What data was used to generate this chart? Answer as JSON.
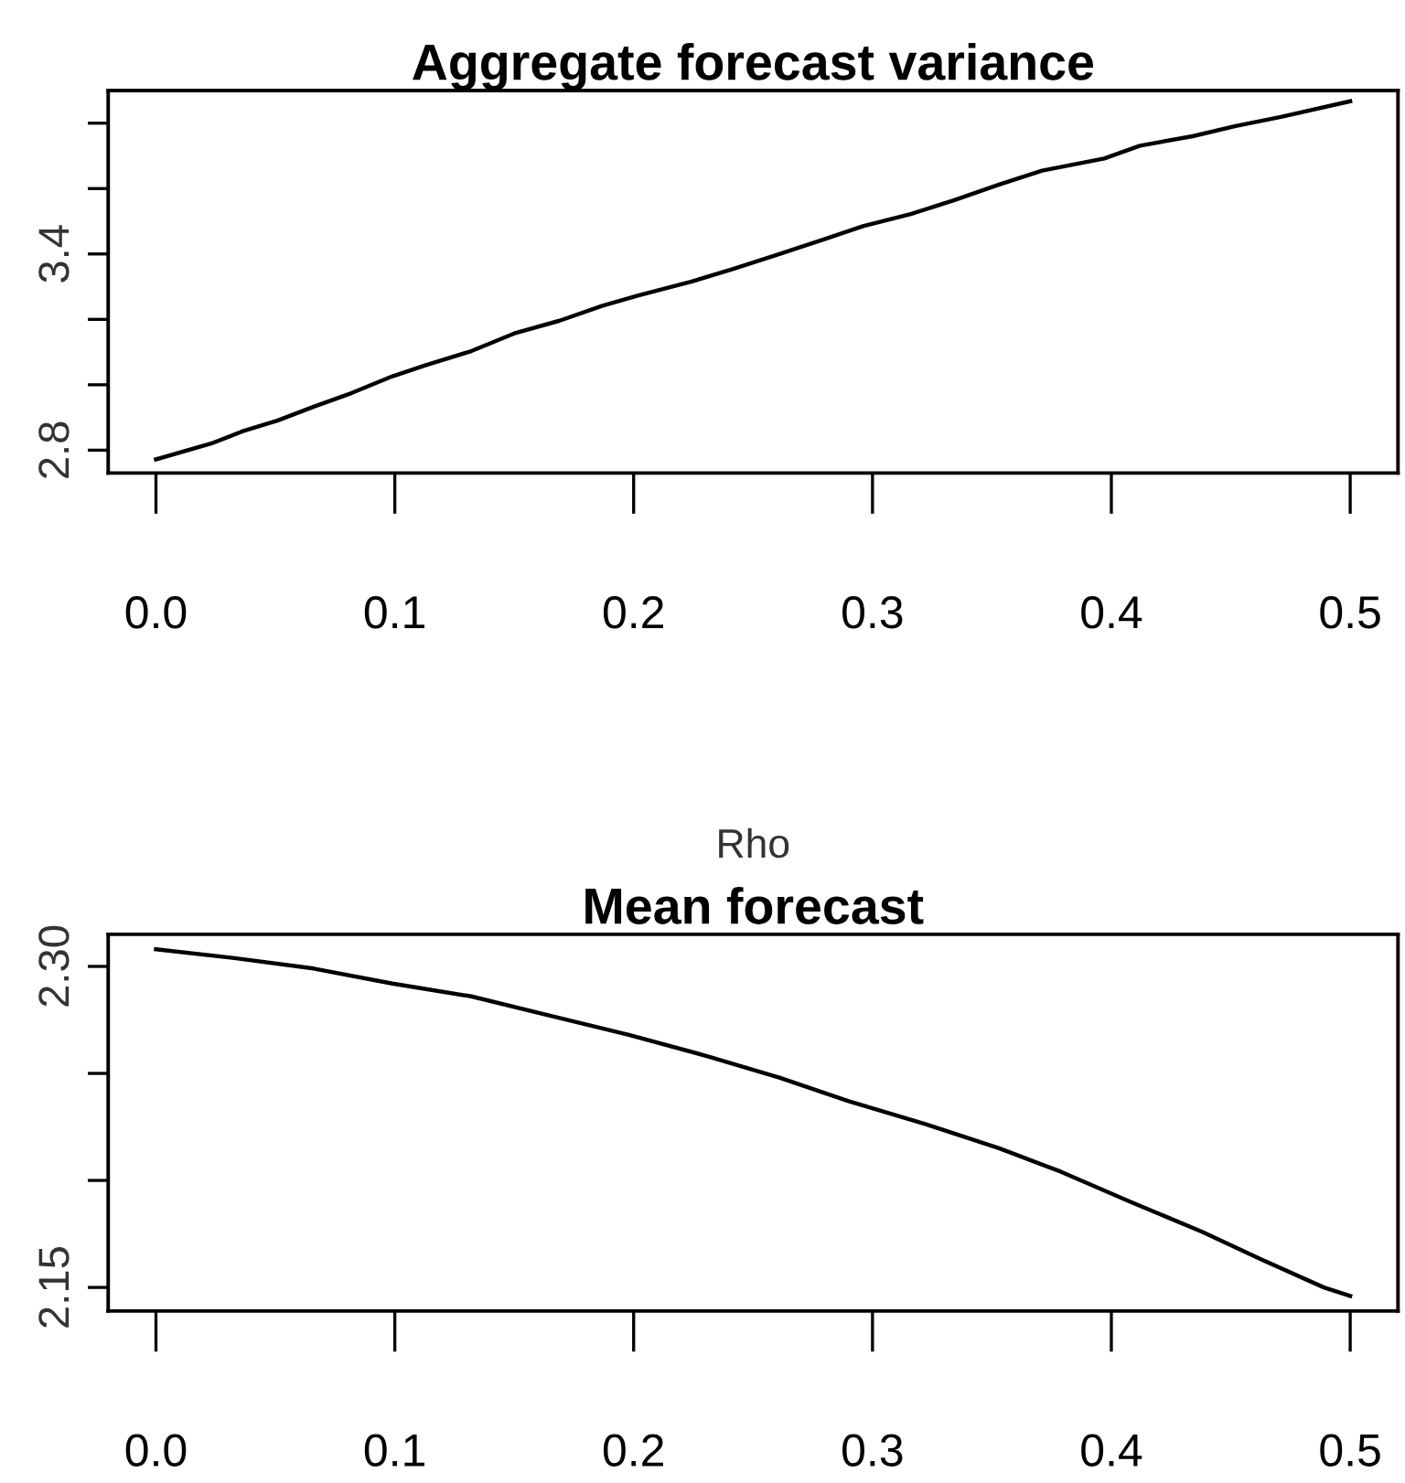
{
  "chart_data": [
    {
      "type": "line",
      "title": "Aggregate forecast variance",
      "xlabel": "Rho",
      "x": [
        0,
        0.023,
        0.036,
        0.051,
        0.066,
        0.082,
        0.099,
        0.113,
        0.132,
        0.15,
        0.169,
        0.187,
        0.202,
        0.224,
        0.242,
        0.261,
        0.279,
        0.296,
        0.316,
        0.334,
        0.353,
        0.371,
        0.397,
        0.412,
        0.434,
        0.452,
        0.471,
        0.5
      ],
      "series": [
        {
          "color": "#000000",
          "values": [
            2.772,
            2.82,
            2.857,
            2.891,
            2.933,
            2.975,
            3.026,
            3.06,
            3.103,
            3.157,
            3.196,
            3.242,
            3.273,
            3.315,
            3.355,
            3.4,
            3.443,
            3.485,
            3.522,
            3.564,
            3.612,
            3.655,
            3.692,
            3.731,
            3.76,
            3.791,
            3.819,
            3.867
          ]
        }
      ],
      "xlim": [
        -0.02,
        0.52
      ],
      "ylim": [
        2.73,
        3.9
      ],
      "xticks": [
        {
          "value": 0,
          "label": "0.0"
        },
        0.1,
        0.2,
        0.3,
        0.4,
        0.5
      ],
      "yticks": [
        2.8,
        {
          "value": 3.0,
          "label": null
        },
        {
          "value": 3.2,
          "label": null
        },
        3.4,
        {
          "value": 3.6,
          "label": null
        },
        {
          "value": 3.8,
          "label": null
        }
      ],
      "grid": false,
      "legend": false,
      "line_style": "solid"
    },
    {
      "type": "line",
      "title": "Mean forecast",
      "x": [
        0,
        0.032,
        0.066,
        0.099,
        0.132,
        0.165,
        0.198,
        0.231,
        0.261,
        0.29,
        0.323,
        0.353,
        0.379,
        0.408,
        0.438,
        0.463,
        0.489,
        0.5
      ],
      "series": [
        {
          "color": "#000000",
          "values": [
            2.308,
            2.304,
            2.299,
            2.292,
            2.286,
            2.277,
            2.268,
            2.258,
            2.248,
            2.237,
            2.226,
            2.215,
            2.204,
            2.19,
            2.176,
            2.163,
            2.15,
            2.146
          ]
        }
      ],
      "xlim": [
        -0.02,
        0.52
      ],
      "ylim": [
        2.139,
        2.315
      ],
      "xticks": [
        {
          "value": 0,
          "label": "0.0"
        },
        0.1,
        0.2,
        0.3,
        0.4,
        0.5
      ],
      "yticks": [
        {
          "value": 2.3,
          "label": "2.30"
        },
        {
          "value": 2.25,
          "label": null
        },
        {
          "value": 2.2,
          "label": null
        },
        2.15
      ],
      "grid": false,
      "legend": false,
      "line_style": "solid"
    }
  ]
}
